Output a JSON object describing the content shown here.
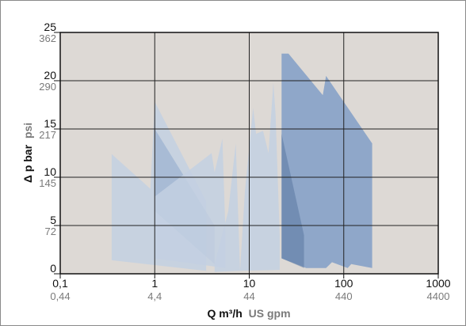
{
  "chart_data": {
    "type": "area",
    "title": "",
    "x_scale": "log",
    "xlim": [
      0.1,
      1000
    ],
    "ylim": [
      0,
      25
    ],
    "grid": true,
    "plot_background": "#ddd9d5",
    "xlabel": {
      "primary": "Q m³/h",
      "secondary": "US gpm"
    },
    "ylabel": {
      "primary": "Δ p bar",
      "secondary": "psi"
    },
    "x_ticks": [
      {
        "value": 0.1,
        "primary": "0,1",
        "secondary": "0,44"
      },
      {
        "value": 1,
        "primary": "1",
        "secondary": "4,4"
      },
      {
        "value": 10,
        "primary": "10",
        "secondary": "44"
      },
      {
        "value": 100,
        "primary": "100",
        "secondary": "440"
      },
      {
        "value": 1000,
        "primary": "1000",
        "secondary": "4400"
      }
    ],
    "y_ticks": [
      {
        "value": 0,
        "primary": "0",
        "secondary": ""
      },
      {
        "value": 5,
        "primary": "5",
        "secondary": "72"
      },
      {
        "value": 10,
        "primary": "10",
        "secondary": "145"
      },
      {
        "value": 15,
        "primary": "15",
        "secondary": "217"
      },
      {
        "value": 20,
        "primary": "20",
        "secondary": "290"
      },
      {
        "value": 25,
        "primary": "25",
        "secondary": "362"
      }
    ],
    "regions": [
      {
        "color": "#c3d0e2",
        "opacity": 0.85,
        "points": [
          [
            0.35,
            12.4
          ],
          [
            0.9,
            8.8
          ],
          [
            1.0,
            17.8
          ],
          [
            3.5,
            7.5
          ],
          [
            3.5,
            0.3
          ],
          [
            0.35,
            1.4
          ]
        ]
      },
      {
        "color": "#8ea8cc",
        "opacity": 0.55,
        "points": [
          [
            1.0,
            15.0
          ],
          [
            4.3,
            5.0
          ],
          [
            4.3,
            1.0
          ],
          [
            1.0,
            6.5
          ]
        ]
      },
      {
        "color": "#c3d0e2",
        "opacity": 0.85,
        "points": [
          [
            1.0,
            8.0
          ],
          [
            4.0,
            12.5
          ],
          [
            4.3,
            10.5
          ],
          [
            5.2,
            14.0
          ],
          [
            5.6,
            4.2
          ],
          [
            5.6,
            0.6
          ],
          [
            1.0,
            1.6
          ]
        ]
      },
      {
        "color": "#c3d0e2",
        "opacity": 0.85,
        "points": [
          [
            4.3,
            1.0
          ],
          [
            6.0,
            6.5
          ],
          [
            7.2,
            13.5
          ],
          [
            8.0,
            0.3
          ],
          [
            4.3,
            0.2
          ]
        ]
      },
      {
        "color": "#c3d0e2",
        "opacity": 0.85,
        "points": [
          [
            9.0,
            8.5
          ],
          [
            11.0,
            17.2
          ],
          [
            11.8,
            14.5
          ],
          [
            14.0,
            14.8
          ],
          [
            16.0,
            12.5
          ],
          [
            18.0,
            19.8
          ],
          [
            19.0,
            16.5
          ],
          [
            21.0,
            4.0
          ],
          [
            21.0,
            0.4
          ],
          [
            8.0,
            0.3
          ]
        ]
      },
      {
        "color": "#7e9cc6",
        "opacity": 0.82,
        "points": [
          [
            22.0,
            22.8
          ],
          [
            26.0,
            22.8
          ],
          [
            60.0,
            18.5
          ],
          [
            65.0,
            20.5
          ],
          [
            200.0,
            13.5
          ],
          [
            200.0,
            0.6
          ],
          [
            120.0,
            1.0
          ],
          [
            110.0,
            0.6
          ],
          [
            75.0,
            1.2
          ],
          [
            65.0,
            0.6
          ],
          [
            40.0,
            0.6
          ],
          [
            22.0,
            1.6
          ]
        ]
      },
      {
        "color": "#4f6f99",
        "opacity": 0.45,
        "points": [
          [
            22.0,
            14.5
          ],
          [
            38.0,
            4.0
          ],
          [
            38.0,
            0.6
          ],
          [
            22.0,
            1.6
          ]
        ]
      }
    ]
  }
}
